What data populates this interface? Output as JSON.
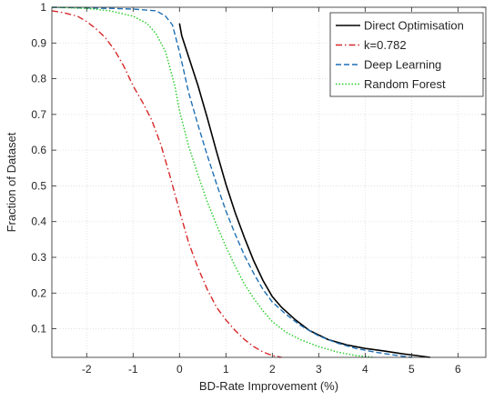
{
  "chart_data": {
    "type": "line",
    "title": "",
    "xlabel": "BD-Rate Improvement (%)",
    "ylabel": "Fraction of Dataset",
    "xlim": [
      -2.75,
      6.6
    ],
    "ylim": [
      0.02,
      1.0
    ],
    "xticks": [
      -2,
      -1,
      0,
      1,
      2,
      3,
      4,
      5,
      6
    ],
    "yticks": [
      0.1,
      0.2,
      0.3,
      0.4,
      0.5,
      0.6,
      0.7,
      0.8,
      0.9,
      1
    ],
    "grid": true,
    "legend_position": "top-right",
    "series": [
      {
        "name": "Direct Optimisation",
        "color": "#000000",
        "dash": "solid",
        "x": [
          0.0,
          0.05,
          0.2,
          0.4,
          0.6,
          0.8,
          1.0,
          1.2,
          1.4,
          1.6,
          1.8,
          2.0,
          2.2,
          2.5,
          2.8,
          3.2,
          3.6,
          4.0,
          4.4,
          4.8,
          5.1,
          5.4
        ],
        "y": [
          0.955,
          0.92,
          0.86,
          0.78,
          0.69,
          0.595,
          0.505,
          0.425,
          0.355,
          0.29,
          0.235,
          0.19,
          0.16,
          0.125,
          0.095,
          0.07,
          0.055,
          0.045,
          0.038,
          0.03,
          0.025,
          0.02
        ]
      },
      {
        "name": "k=0.782",
        "color": "#d62728",
        "dash": "dashdot",
        "x": [
          -2.75,
          -2.5,
          -2.2,
          -2.0,
          -1.8,
          -1.6,
          -1.4,
          -1.2,
          -1.0,
          -0.8,
          -0.6,
          -0.4,
          -0.2,
          0.0,
          0.2,
          0.4,
          0.6,
          0.8,
          1.0,
          1.2,
          1.4,
          1.6,
          1.8,
          2.0,
          2.2
        ],
        "y": [
          0.99,
          0.985,
          0.975,
          0.96,
          0.94,
          0.915,
          0.88,
          0.835,
          0.78,
          0.735,
          0.685,
          0.615,
          0.525,
          0.43,
          0.34,
          0.27,
          0.21,
          0.16,
          0.125,
          0.095,
          0.07,
          0.05,
          0.035,
          0.025,
          0.02
        ]
      },
      {
        "name": "Deep Learning",
        "color": "#1f6fb4",
        "dash": "dashed",
        "x": [
          -2.75,
          -1.5,
          -1.0,
          -0.5,
          -0.3,
          -0.15,
          0.0,
          0.2,
          0.4,
          0.6,
          0.8,
          1.0,
          1.2,
          1.4,
          1.6,
          1.8,
          2.0,
          2.3,
          2.6,
          3.0,
          3.4,
          3.8,
          4.2,
          4.6,
          5.0
        ],
        "y": [
          1.0,
          0.997,
          0.995,
          0.99,
          0.975,
          0.95,
          0.875,
          0.76,
          0.67,
          0.585,
          0.505,
          0.43,
          0.365,
          0.305,
          0.255,
          0.21,
          0.175,
          0.14,
          0.11,
          0.08,
          0.06,
          0.045,
          0.035,
          0.027,
          0.02
        ]
      },
      {
        "name": "Random Forest",
        "color": "#22cc22",
        "dash": "dotted",
        "x": [
          -2.75,
          -2.0,
          -1.5,
          -1.0,
          -0.7,
          -0.5,
          -0.3,
          -0.1,
          0.0,
          0.2,
          0.4,
          0.6,
          0.8,
          1.0,
          1.2,
          1.4,
          1.6,
          1.8,
          2.0,
          2.3,
          2.6,
          3.0,
          3.4,
          3.8,
          4.2
        ],
        "y": [
          1.0,
          0.997,
          0.99,
          0.975,
          0.955,
          0.925,
          0.875,
          0.78,
          0.71,
          0.61,
          0.53,
          0.455,
          0.39,
          0.33,
          0.275,
          0.225,
          0.185,
          0.15,
          0.12,
          0.09,
          0.07,
          0.05,
          0.035,
          0.025,
          0.02
        ]
      }
    ]
  }
}
